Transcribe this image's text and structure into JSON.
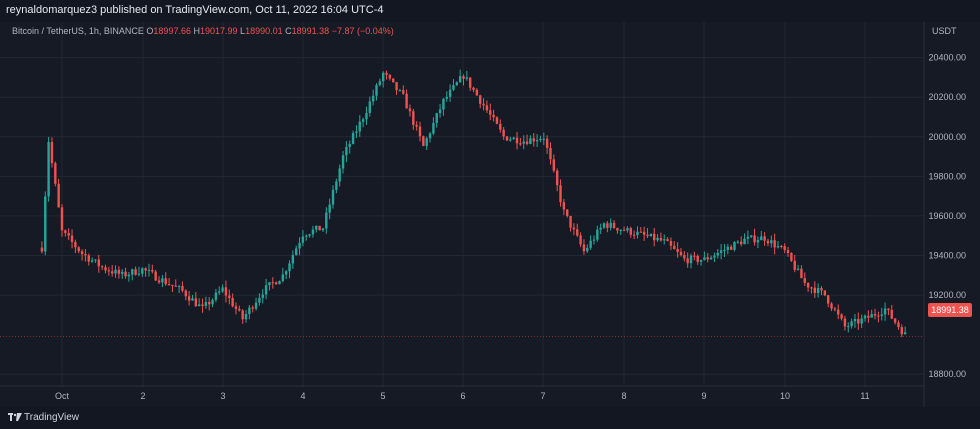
{
  "header": {
    "publisher": "reynaldomarquez3 published on TradingView.com, Oct 11, 2022 16:04 UTC-4"
  },
  "legend": {
    "symbol": "Bitcoin / TetherUS, 1h, BINANCE",
    "open_label": "O",
    "open": "18997.66",
    "high_label": "H",
    "high": "19017.99",
    "low_label": "L",
    "low": "18990.01",
    "close_label": "C",
    "close": "18991.38",
    "change": "−7.87 (−0.04%)"
  },
  "price_axis": {
    "currency": "USDT",
    "ticks": [
      "20400.00",
      "20200.00",
      "20000.00",
      "19800.00",
      "19600.00",
      "19400.00",
      "19200.00",
      "18800.00"
    ],
    "last_price": "18991.38"
  },
  "footer": {
    "brand": "TradingView"
  },
  "colors": {
    "background": "#161a25",
    "up": "#26a69a",
    "down": "#ef5350",
    "grid": "#232734"
  },
  "chart_data": {
    "type": "candlestick",
    "title": "",
    "xlabel": "",
    "ylabel": "",
    "ylim": [
      18700,
      20560
    ],
    "x_tick_labels": [
      "Oct",
      "2",
      "3",
      "4",
      "5",
      "6",
      "7",
      "8",
      "9",
      "10",
      "11"
    ],
    "y_tick_values": [
      20400,
      20200,
      20000,
      19800,
      19600,
      19400,
      19200,
      18800
    ],
    "last_price": 18991.38,
    "grid": true,
    "series": [
      {
        "name": "Bitcoin / TetherUS, 1h, BINANCE",
        "approx_close_path": [
          {
            "x": "Sep 30 18:00",
            "y": 19440
          },
          {
            "x": "Sep 30 20:00",
            "y": 19980
          },
          {
            "x": "Oct 1 00:00",
            "y": 19520
          },
          {
            "x": "Oct 1 06:00",
            "y": 19410
          },
          {
            "x": "Oct 1 12:00",
            "y": 19340
          },
          {
            "x": "Oct 1 18:00",
            "y": 19300
          },
          {
            "x": "Oct 2 00:00",
            "y": 19330
          },
          {
            "x": "Oct 2 12:00",
            "y": 19220
          },
          {
            "x": "Oct 2 18:00",
            "y": 19130
          },
          {
            "x": "Oct 3 00:00",
            "y": 19230
          },
          {
            "x": "Oct 3 06:00",
            "y": 19080
          },
          {
            "x": "Oct 3 12:00",
            "y": 19220
          },
          {
            "x": "Oct 3 18:00",
            "y": 19300
          },
          {
            "x": "Oct 4 00:00",
            "y": 19510
          },
          {
            "x": "Oct 4 06:00",
            "y": 19540
          },
          {
            "x": "Oct 4 12:00",
            "y": 19900
          },
          {
            "x": "Oct 4 18:00",
            "y": 20100
          },
          {
            "x": "Oct 5 00:00",
            "y": 20320
          },
          {
            "x": "Oct 5 06:00",
            "y": 20200
          },
          {
            "x": "Oct 5 12:00",
            "y": 19950
          },
          {
            "x": "Oct 5 18:00",
            "y": 20180
          },
          {
            "x": "Oct 6 00:00",
            "y": 20310
          },
          {
            "x": "Oct 6 06:00",
            "y": 20160
          },
          {
            "x": "Oct 6 12:00",
            "y": 20000
          },
          {
            "x": "Oct 6 18:00",
            "y": 19980
          },
          {
            "x": "Oct 7 00:00",
            "y": 20000
          },
          {
            "x": "Oct 7 06:00",
            "y": 19620
          },
          {
            "x": "Oct 7 12:00",
            "y": 19420
          },
          {
            "x": "Oct 7 18:00",
            "y": 19560
          },
          {
            "x": "Oct 8 00:00",
            "y": 19530
          },
          {
            "x": "Oct 8 12:00",
            "y": 19470
          },
          {
            "x": "Oct 8 18:00",
            "y": 19380
          },
          {
            "x": "Oct 9 00:00",
            "y": 19380
          },
          {
            "x": "Oct 9 12:00",
            "y": 19480
          },
          {
            "x": "Oct 9 18:00",
            "y": 19490
          },
          {
            "x": "Oct 10 00:00",
            "y": 19420
          },
          {
            "x": "Oct 10 06:00",
            "y": 19260
          },
          {
            "x": "Oct 10 12:00",
            "y": 19200
          },
          {
            "x": "Oct 10 18:00",
            "y": 19040
          },
          {
            "x": "Oct 11 00:00",
            "y": 19080
          },
          {
            "x": "Oct 11 06:00",
            "y": 19130
          },
          {
            "x": "Oct 11 12:00",
            "y": 19000
          }
        ]
      }
    ]
  }
}
